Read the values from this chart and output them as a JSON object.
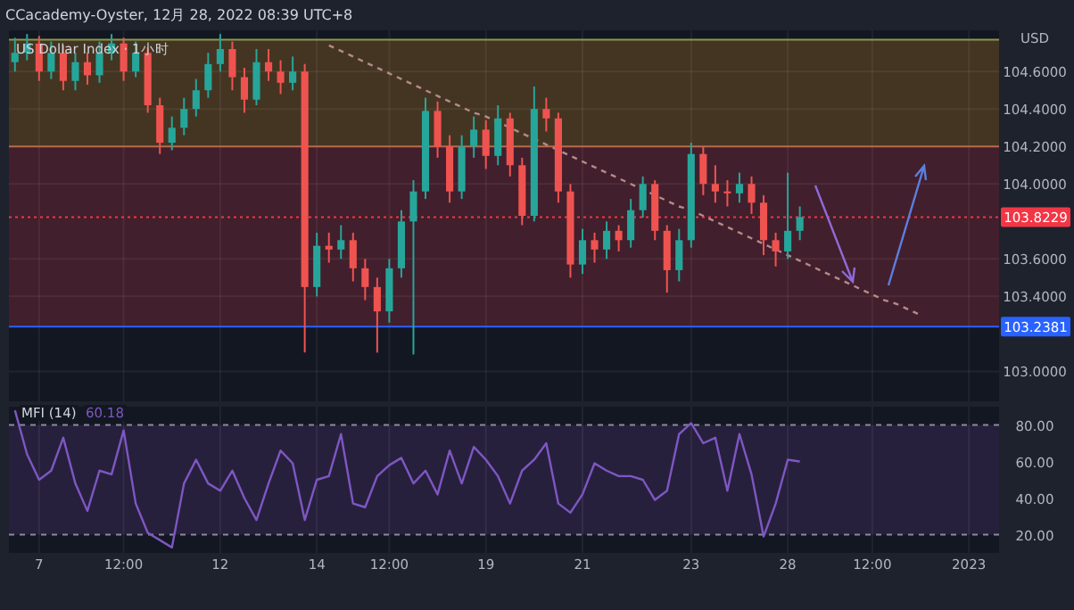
{
  "chart_data": [
    {
      "type": "candlestick",
      "title": "CCacademy-Oyster, 12月 28, 2022 08:39 UTC+8",
      "subtitle": "US Dollar Index · 1小时",
      "ylabel": "USD",
      "categories": [
        null,
        null,
        null,
        null,
        null,
        null,
        null,
        null,
        null,
        null,
        null,
        null,
        null,
        null,
        null,
        null,
        null,
        null,
        null,
        null,
        null,
        null,
        null,
        null,
        null,
        null,
        null,
        null,
        null,
        null,
        null,
        null,
        null,
        null,
        null,
        null,
        null,
        null,
        null,
        null,
        null,
        null,
        null,
        null,
        null,
        null,
        null,
        null,
        null,
        null,
        null,
        null,
        null,
        null,
        null,
        null,
        null,
        null,
        null,
        null,
        null,
        null,
        null,
        null,
        null,
        null,
        null,
        null,
        null,
        null,
        null,
        null,
        null,
        null,
        null,
        null,
        null,
        null,
        null,
        null,
        null,
        null
      ],
      "ohlc": [
        [
          104.65,
          104.78,
          104.6,
          104.7
        ],
        [
          104.7,
          104.8,
          104.66,
          104.75
        ],
        [
          104.75,
          104.79,
          104.55,
          104.6
        ],
        [
          104.6,
          104.76,
          104.56,
          104.7
        ],
        [
          104.7,
          104.74,
          104.5,
          104.55
        ],
        [
          104.55,
          104.7,
          104.5,
          104.65
        ],
        [
          104.65,
          104.7,
          104.53,
          104.58
        ],
        [
          104.58,
          104.76,
          104.54,
          104.7
        ],
        [
          104.7,
          104.8,
          104.66,
          104.75
        ],
        [
          104.75,
          104.78,
          104.55,
          104.6
        ],
        [
          104.6,
          104.76,
          104.57,
          104.7
        ],
        [
          104.7,
          104.73,
          104.38,
          104.42
        ],
        [
          104.42,
          104.46,
          104.16,
          104.22
        ],
        [
          104.22,
          104.36,
          104.18,
          104.3
        ],
        [
          104.3,
          104.46,
          104.26,
          104.4
        ],
        [
          104.4,
          104.56,
          104.36,
          104.5
        ],
        [
          104.5,
          104.7,
          104.46,
          104.64
        ],
        [
          104.64,
          104.8,
          104.6,
          104.72
        ],
        [
          104.72,
          104.76,
          104.5,
          104.57
        ],
        [
          104.57,
          104.62,
          104.38,
          104.45
        ],
        [
          104.45,
          104.72,
          104.42,
          104.65
        ],
        [
          104.65,
          104.72,
          104.55,
          104.6
        ],
        [
          104.6,
          104.66,
          104.48,
          104.54
        ],
        [
          104.54,
          104.68,
          104.5,
          104.6
        ],
        [
          104.6,
          104.64,
          103.1,
          103.45
        ],
        [
          103.45,
          103.74,
          103.4,
          103.67
        ],
        [
          103.67,
          103.74,
          103.58,
          103.65
        ],
        [
          103.65,
          103.78,
          103.6,
          103.7
        ],
        [
          103.7,
          103.74,
          103.48,
          103.55
        ],
        [
          103.55,
          103.6,
          103.38,
          103.45
        ],
        [
          103.45,
          103.5,
          103.1,
          103.32
        ],
        [
          103.32,
          103.6,
          103.26,
          103.55
        ],
        [
          103.55,
          103.86,
          103.5,
          103.8
        ],
        [
          103.8,
          104.02,
          103.09,
          103.96
        ],
        [
          103.96,
          104.46,
          103.92,
          104.39
        ],
        [
          104.39,
          104.44,
          104.14,
          104.2
        ],
        [
          104.2,
          104.26,
          103.9,
          103.96
        ],
        [
          103.96,
          104.26,
          103.92,
          104.2
        ],
        [
          104.2,
          104.36,
          104.14,
          104.29
        ],
        [
          104.29,
          104.34,
          104.08,
          104.15
        ],
        [
          104.15,
          104.42,
          104.1,
          104.35
        ],
        [
          104.35,
          104.38,
          104.04,
          104.1
        ],
        [
          104.1,
          104.14,
          103.78,
          103.83
        ],
        [
          103.83,
          104.52,
          103.8,
          104.4
        ],
        [
          104.4,
          104.46,
          104.28,
          104.35
        ],
        [
          104.35,
          104.38,
          103.9,
          103.96
        ],
        [
          103.96,
          104.0,
          103.5,
          103.57
        ],
        [
          103.57,
          103.76,
          103.52,
          103.7
        ],
        [
          103.7,
          103.74,
          103.58,
          103.65
        ],
        [
          103.65,
          103.8,
          103.6,
          103.75
        ],
        [
          103.75,
          103.78,
          103.64,
          103.7
        ],
        [
          103.7,
          103.92,
          103.66,
          103.86
        ],
        [
          103.86,
          104.04,
          103.82,
          104.0
        ],
        [
          104.0,
          104.02,
          103.7,
          103.75
        ],
        [
          103.75,
          103.78,
          103.42,
          103.54
        ],
        [
          103.54,
          103.76,
          103.48,
          103.7
        ],
        [
          103.7,
          104.22,
          103.66,
          104.16
        ],
        [
          104.16,
          104.2,
          103.94,
          104.0
        ],
        [
          104.0,
          104.1,
          103.9,
          103.96
        ],
        [
          103.96,
          104.02,
          103.88,
          103.95
        ],
        [
          103.95,
          104.06,
          103.9,
          104.0
        ],
        [
          104.0,
          104.04,
          103.84,
          103.9
        ],
        [
          103.9,
          103.94,
          103.62,
          103.7
        ],
        [
          103.7,
          103.74,
          103.56,
          103.64
        ],
        [
          103.64,
          104.06,
          103.6,
          103.75
        ],
        [
          103.75,
          103.88,
          103.7,
          103.8229
        ],
        null,
        null,
        null,
        null,
        null,
        null,
        null,
        null,
        null,
        null,
        null,
        null,
        null,
        null,
        null,
        null
      ],
      "colors": [
        "#26a69a",
        "#26a69a",
        "#ef5350",
        "#26a69a",
        "#ef5350",
        "#26a69a",
        "#ef5350",
        "#26a69a",
        "#26a69a",
        "#ef5350",
        "#26a69a",
        "#ef5350",
        "#ef5350",
        "#26a69a",
        "#26a69a",
        "#26a69a",
        "#26a69a",
        "#26a69a",
        "#ef5350",
        "#ef5350",
        "#26a69a",
        "#ef5350",
        "#ef5350",
        "#26a69a",
        "#ef5350",
        "#26a69a",
        "#ef5350",
        "#26a69a",
        "#ef5350",
        "#ef5350",
        "#ef5350",
        "#26a69a",
        "#26a69a",
        "#26a69a",
        "#26a69a",
        "#ef5350",
        "#ef5350",
        "#26a69a",
        "#26a69a",
        "#ef5350",
        "#26a69a",
        "#ef5350",
        "#ef5350",
        "#26a69a",
        "#ef5350",
        "#ef5350",
        "#ef5350",
        "#26a69a",
        "#ef5350",
        "#26a69a",
        "#ef5350",
        "#26a69a",
        "#26a69a",
        "#ef5350",
        "#ef5350",
        "#26a69a",
        "#26a69a",
        "#ef5350",
        "#ef5350",
        "#ef5350",
        "#26a69a",
        "#ef5350",
        "#ef5350",
        "#ef5350",
        "#26a69a",
        "#26a69a",
        null,
        null,
        null,
        null,
        null,
        null,
        null,
        null,
        null,
        null,
        null,
        null,
        null,
        null,
        null,
        null
      ],
      "series": [
        {
          "type": "line",
          "color": "#b58a8a",
          "line_style": "dashed",
          "values": [
            null,
            null,
            null,
            null,
            null,
            null,
            null,
            null,
            null,
            null,
            null,
            null,
            null,
            null,
            null,
            null,
            null,
            null,
            null,
            null,
            null,
            null,
            null,
            null,
            null,
            null,
            104.74,
            104.71,
            104.68,
            104.65,
            104.62,
            104.59,
            104.56,
            104.53,
            104.5,
            104.47,
            104.44,
            104.41,
            104.38,
            104.36,
            104.33,
            104.3,
            104.27,
            104.24,
            104.21,
            104.18,
            104.15,
            104.12,
            104.09,
            104.06,
            104.03,
            104.0,
            103.97,
            103.94,
            103.91,
            103.88,
            103.86,
            103.83,
            103.8,
            103.77,
            103.74,
            103.71,
            103.68,
            103.65,
            103.62,
            103.59,
            103.56,
            103.53,
            103.5,
            103.47,
            103.44,
            103.41,
            103.38,
            103.36,
            103.33,
            103.3,
            null,
            null,
            null,
            null,
            null,
            null
          ]
        }
      ],
      "ylim": [
        102.84,
        104.82
      ],
      "yticks": [
        {
          "value": 103.0,
          "label": "103.0000"
        },
        {
          "value": 103.4,
          "label": "103.4000"
        },
        {
          "value": 103.6,
          "label": "103.6000"
        },
        {
          "value": 104.0,
          "label": "104.0000"
        },
        {
          "value": 104.2,
          "label": "104.2000"
        },
        {
          "value": 104.4,
          "label": "104.4000"
        },
        {
          "value": 104.6,
          "label": "104.6000"
        }
      ],
      "bands": [
        {
          "axis": "y",
          "from": 104.2,
          "to": 104.77,
          "color": "#4a3822"
        },
        {
          "axis": "y",
          "from": 103.2381,
          "to": 104.2,
          "color": "#48202e"
        }
      ],
      "ref_lines": [
        {
          "axis": "y",
          "value": 104.77,
          "color": "#8a9a4a",
          "line_style": "solid"
        },
        {
          "axis": "y",
          "value": 104.2,
          "color": "#b8684a",
          "line_style": "solid"
        },
        {
          "axis": "y",
          "value": 103.8229,
          "label": "103.8229",
          "color": "#f23645",
          "line_style": "dotted"
        },
        {
          "axis": "y",
          "value": 103.2381,
          "label": "103.2381",
          "color": "#2962ff",
          "line_style": "solid"
        }
      ],
      "grid": true,
      "tick_labels": "y"
    },
    {
      "type": "line",
      "title": "MFI (14)",
      "annotations": [
        "60.18"
      ],
      "categories": [
        null,
        null,
        "7",
        null,
        null,
        null,
        null,
        null,
        null,
        "12:00",
        null,
        null,
        null,
        null,
        null,
        null,
        null,
        "12",
        null,
        null,
        null,
        null,
        null,
        null,
        null,
        "14",
        null,
        null,
        null,
        null,
        null,
        "12:00",
        null,
        null,
        null,
        null,
        null,
        null,
        null,
        "19",
        null,
        null,
        null,
        null,
        null,
        null,
        null,
        "21",
        null,
        null,
        null,
        null,
        null,
        null,
        null,
        null,
        "23",
        null,
        null,
        null,
        null,
        null,
        null,
        null,
        "28",
        null,
        null,
        null,
        null,
        null,
        null,
        "12:00",
        null,
        null,
        null,
        null,
        null,
        null,
        null,
        "2023",
        null,
        null
      ],
      "series": [
        {
          "color": "#7e57c2",
          "values": [
            88,
            64,
            50,
            55,
            73,
            48,
            33,
            55,
            53,
            77,
            37,
            21,
            17,
            13,
            48,
            61,
            48,
            44,
            55,
            40,
            28,
            48,
            66,
            59,
            28,
            50,
            52,
            75,
            37,
            35,
            52,
            58,
            62,
            48,
            55,
            42,
            66,
            48,
            68,
            61,
            52,
            37,
            55,
            61,
            70,
            37,
            32,
            42,
            59,
            55,
            52,
            52,
            50,
            39,
            44,
            75,
            81,
            70,
            73,
            44,
            75,
            53,
            19,
            37,
            61,
            60,
            null,
            null,
            null,
            null,
            null,
            null,
            null,
            null,
            null,
            null,
            null,
            null,
            null,
            null,
            null,
            null
          ]
        }
      ],
      "ylim": [
        10,
        90
      ],
      "yticks": [
        {
          "value": 20,
          "label": "20.00"
        },
        {
          "value": 40,
          "label": "40.00"
        },
        {
          "value": 60,
          "label": "60.00"
        },
        {
          "value": 80,
          "label": "80.00"
        }
      ],
      "bands": [
        {
          "axis": "y",
          "from": 20,
          "to": 80,
          "color": "#2a2140"
        }
      ],
      "ref_lines": [
        {
          "axis": "y",
          "value": 80,
          "color": "#8a8aa0",
          "line_style": "dashed"
        },
        {
          "axis": "y",
          "value": 20,
          "color": "#8a8aa0",
          "line_style": "dashed"
        }
      ],
      "grid": "x"
    }
  ]
}
